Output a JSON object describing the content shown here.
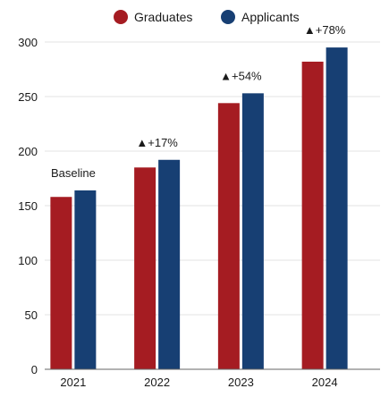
{
  "chart_data": {
    "type": "bar",
    "categories": [
      "2021",
      "2022",
      "2023",
      "2024"
    ],
    "series": [
      {
        "name": "Graduates",
        "values": [
          158,
          185,
          244,
          282
        ],
        "color": "#a51c22"
      },
      {
        "name": "Applicants",
        "values": [
          164,
          192,
          253,
          295
        ],
        "color": "#173f73"
      }
    ],
    "annotations": [
      "Baseline",
      "+17%",
      "+54%",
      "+78%"
    ],
    "annotation_marker": "▲",
    "ylim": [
      0,
      300
    ],
    "yticks": [
      0,
      50,
      100,
      150,
      200,
      250,
      300
    ],
    "grid": true,
    "legend_placement": "top-center"
  }
}
